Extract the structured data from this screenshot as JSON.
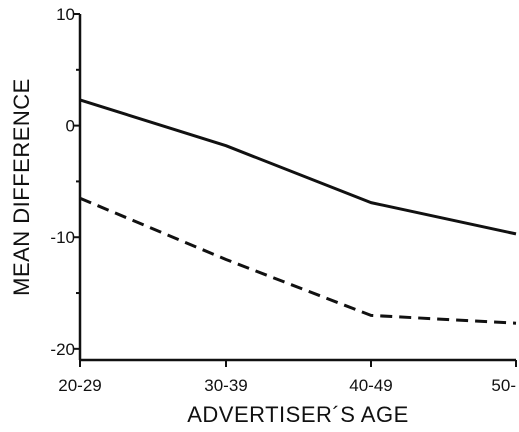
{
  "chart_data": {
    "type": "line",
    "title": "",
    "xlabel": "ADVERTISER´S AGE",
    "ylabel": "MEAN DIFFERENCE",
    "categories": [
      "20-29",
      "30-39",
      "40-49",
      "50-"
    ],
    "ylim": [
      -21,
      10
    ],
    "yticks": [
      10,
      0,
      -10,
      -20
    ],
    "y_minor_ticks": [
      5,
      -5,
      -15
    ],
    "grid": false,
    "legend": "none",
    "series": [
      {
        "style": "solid",
        "color": "#111111",
        "values": [
          2.3,
          -1.8,
          -6.9,
          -9.7
        ]
      },
      {
        "style": "dashed",
        "color": "#111111",
        "values": [
          -6.5,
          -12.0,
          -17.0,
          -17.7
        ]
      }
    ]
  }
}
